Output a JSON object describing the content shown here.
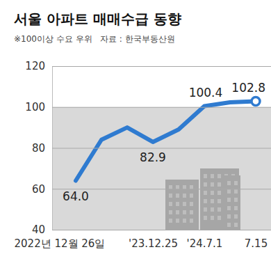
{
  "chart_data": {
    "type": "line",
    "title": "서울 아파트 매매수급 동향",
    "subtitle": "※100이상 수요 우위   자료 : 한국부동산원",
    "categories": [
      "2022년 12월 26일",
      null,
      null,
      "'23.12.25",
      null,
      "'24.7.1",
      null,
      "7.15"
    ],
    "values": [
      64.0,
      84,
      90,
      82.9,
      89,
      100.4,
      102.3,
      102.8
    ],
    "value_labels": [
      "64.0",
      null,
      null,
      "82.9",
      null,
      "100.4",
      null,
      "102.8"
    ],
    "data_labels": true,
    "color": "#2f7bd0",
    "marker": "circle",
    "ylim": [
      40,
      120
    ],
    "yticks": [
      40,
      60,
      80,
      100,
      120
    ],
    "grid": true,
    "threshold": 100
  }
}
